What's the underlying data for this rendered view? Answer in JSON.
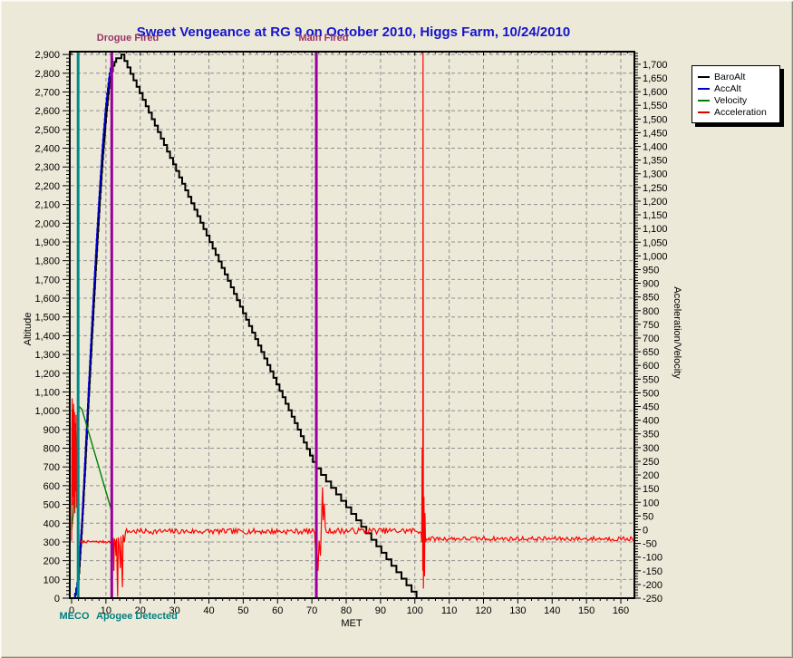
{
  "window": {
    "bg": "#ece9d8"
  },
  "chart_data": {
    "type": "line",
    "title": "Sweet Vengeance at RG 9 on October 2010, Higgs Farm, 10/24/2010",
    "title_color": "#1414cc",
    "xlabel": "MET",
    "ylabel_left": "Altitude",
    "ylabel_right": "Acceleration/Velocity",
    "x_axis": {
      "min": 0,
      "max": 164,
      "major": 10,
      "minor": 2,
      "label_max": 160
    },
    "left_axis": {
      "min": 0,
      "max": 2915,
      "major": 100,
      "minor": 20,
      "label_max": 2900
    },
    "right_axis": {
      "min": -250,
      "max": 1746,
      "major": 50,
      "minor": 10,
      "label_max": 1700
    },
    "grid": {
      "show": true,
      "color": "#8f8f8f"
    },
    "legend": {
      "position": "top-right",
      "entries": [
        {
          "name": "BaroAlt",
          "color": "#000000"
        },
        {
          "name": "AccAlt",
          "color": "#0000cd"
        },
        {
          "name": "Velocity",
          "color": "#008000"
        },
        {
          "name": "Acceleration",
          "color": "#dd0000"
        }
      ]
    },
    "event_lines": [
      {
        "name": "meco",
        "t": 1.9,
        "color": "#008b8b"
      },
      {
        "name": "drogue-fired",
        "t": 11.7,
        "color": "#990099"
      },
      {
        "name": "main-fired",
        "t": 71.3,
        "color": "#990099"
      }
    ],
    "annotations": [
      {
        "name": "drogue-fired-label",
        "text": "Drogue Fired",
        "color": "#993366"
      },
      {
        "name": "main-fired-label",
        "text": "Main Fired",
        "color": "#993366"
      },
      {
        "name": "meco-label",
        "text": "MECO",
        "color": "#008080"
      },
      {
        "name": "apogee-detected-label",
        "text": "Apogee Detected",
        "color": "#008080"
      }
    ],
    "series": [
      {
        "name": "BaroAlt",
        "axis": "left",
        "color": "#000000",
        "width": 2,
        "render": "step",
        "step_v": 35,
        "points": [
          [
            0,
            0
          ],
          [
            1,
            20
          ],
          [
            2,
            100
          ],
          [
            3,
            380
          ],
          [
            4,
            720
          ],
          [
            5,
            1080
          ],
          [
            6,
            1420
          ],
          [
            7,
            1750
          ],
          [
            8,
            2060
          ],
          [
            9,
            2340
          ],
          [
            10,
            2570
          ],
          [
            11,
            2750
          ],
          [
            12,
            2840
          ],
          [
            13,
            2880
          ],
          [
            14.5,
            2900
          ],
          [
            71.2,
            692
          ],
          [
            100.5,
            0
          ],
          [
            163.8,
            0
          ]
        ]
      },
      {
        "name": "AccAlt",
        "axis": "left",
        "color": "#0000cd",
        "width": 1.6,
        "render": "step",
        "step_v": 30,
        "points": [
          [
            0,
            0
          ],
          [
            1,
            25
          ],
          [
            1.9,
            110
          ],
          [
            3,
            420
          ],
          [
            4,
            780
          ],
          [
            5,
            1150
          ],
          [
            6,
            1500
          ],
          [
            7,
            1830
          ],
          [
            8,
            2140
          ],
          [
            9,
            2420
          ],
          [
            10,
            2640
          ],
          [
            11,
            2800
          ],
          [
            11.9,
            2880
          ]
        ]
      },
      {
        "name": "Velocity",
        "axis": "right",
        "color": "#008000",
        "width": 1.4,
        "render": "line",
        "points": [
          [
            0,
            0
          ],
          [
            0.5,
            60
          ],
          [
            1.0,
            180
          ],
          [
            1.6,
            330
          ],
          [
            2.2,
            450
          ],
          [
            3.0,
            440
          ],
          [
            11.9,
            58
          ]
        ]
      },
      {
        "name": "Acceleration",
        "axis": "right",
        "color": "#ff0000",
        "width": 1.2,
        "render": "segments",
        "segments": [
          {
            "type": "points",
            "pts": [
              [
                0,
                -40
              ],
              [
                0.08,
                350
              ],
              [
                0.18,
                480
              ],
              [
                0.28,
                90
              ],
              [
                0.4,
                440
              ],
              [
                0.5,
                120
              ],
              [
                0.62,
                460
              ],
              [
                0.72,
                100
              ],
              [
                0.85,
                430
              ],
              [
                0.95,
                60
              ],
              [
                1.05,
                390
              ],
              [
                1.15,
                140
              ],
              [
                1.3,
                420
              ],
              [
                1.4,
                80
              ],
              [
                1.5,
                300
              ],
              [
                1.6,
                150
              ],
              [
                1.7,
                250
              ],
              [
                1.8,
                60
              ],
              [
                1.9,
                -30
              ],
              [
                2.1,
                -45
              ]
            ]
          },
          {
            "type": "noise",
            "t0": 2.4,
            "t1": 11.4,
            "base": -44,
            "amp": 4,
            "dt": 0.25
          },
          {
            "type": "points",
            "pts": [
              [
                11.6,
                -38
              ],
              [
                11.8,
                -90
              ],
              [
                11.95,
                -30
              ],
              [
                12.1,
                -35
              ],
              [
                12.3,
                -150
              ],
              [
                12.45,
                -35
              ],
              [
                12.7,
                -40
              ],
              [
                12.9,
                -95
              ],
              [
                13.1,
                -32
              ],
              [
                13.4,
                -245
              ],
              [
                13.6,
                -28
              ],
              [
                13.9,
                -60
              ],
              [
                14.2,
                -140
              ],
              [
                14.4,
                -24
              ],
              [
                14.8,
                -210
              ],
              [
                15.0,
                -18
              ],
              [
                15.4,
                -45
              ],
              [
                15.7,
                -8
              ]
            ]
          },
          {
            "type": "noise",
            "t0": 16,
            "t1": 70.6,
            "base": -6,
            "amp": 10,
            "dt": 0.35
          },
          {
            "type": "points",
            "pts": [
              [
                70.8,
                -12
              ],
              [
                71.0,
                -60
              ],
              [
                71.2,
                -120
              ],
              [
                71.5,
                -80
              ],
              [
                71.8,
                -150
              ],
              [
                72.1,
                -40
              ],
              [
                72.5,
                -95
              ],
              [
                72.8,
                30
              ],
              [
                73.1,
                155
              ],
              [
                73.3,
                35
              ],
              [
                73.6,
                95
              ],
              [
                73.9,
                10
              ],
              [
                74.2,
                -8
              ]
            ]
          },
          {
            "type": "noise",
            "t0": 74.5,
            "t1": 101.6,
            "base": -4,
            "amp": 11,
            "dt": 0.35
          },
          {
            "type": "points",
            "pts": [
              [
                101.8,
                -10
              ],
              [
                102.0,
                -45
              ],
              [
                102.15,
                300
              ],
              [
                102.3,
                -150
              ],
              [
                102.38,
                1745
              ],
              [
                102.5,
                -215
              ],
              [
                102.65,
                120
              ],
              [
                102.8,
                -170
              ],
              [
                102.95,
                60
              ],
              [
                103.1,
                -45
              ]
            ]
          },
          {
            "type": "noise",
            "t0": 103.4,
            "t1": 163.8,
            "base": -33,
            "amp": 8,
            "dt": 0.35
          }
        ]
      }
    ]
  }
}
